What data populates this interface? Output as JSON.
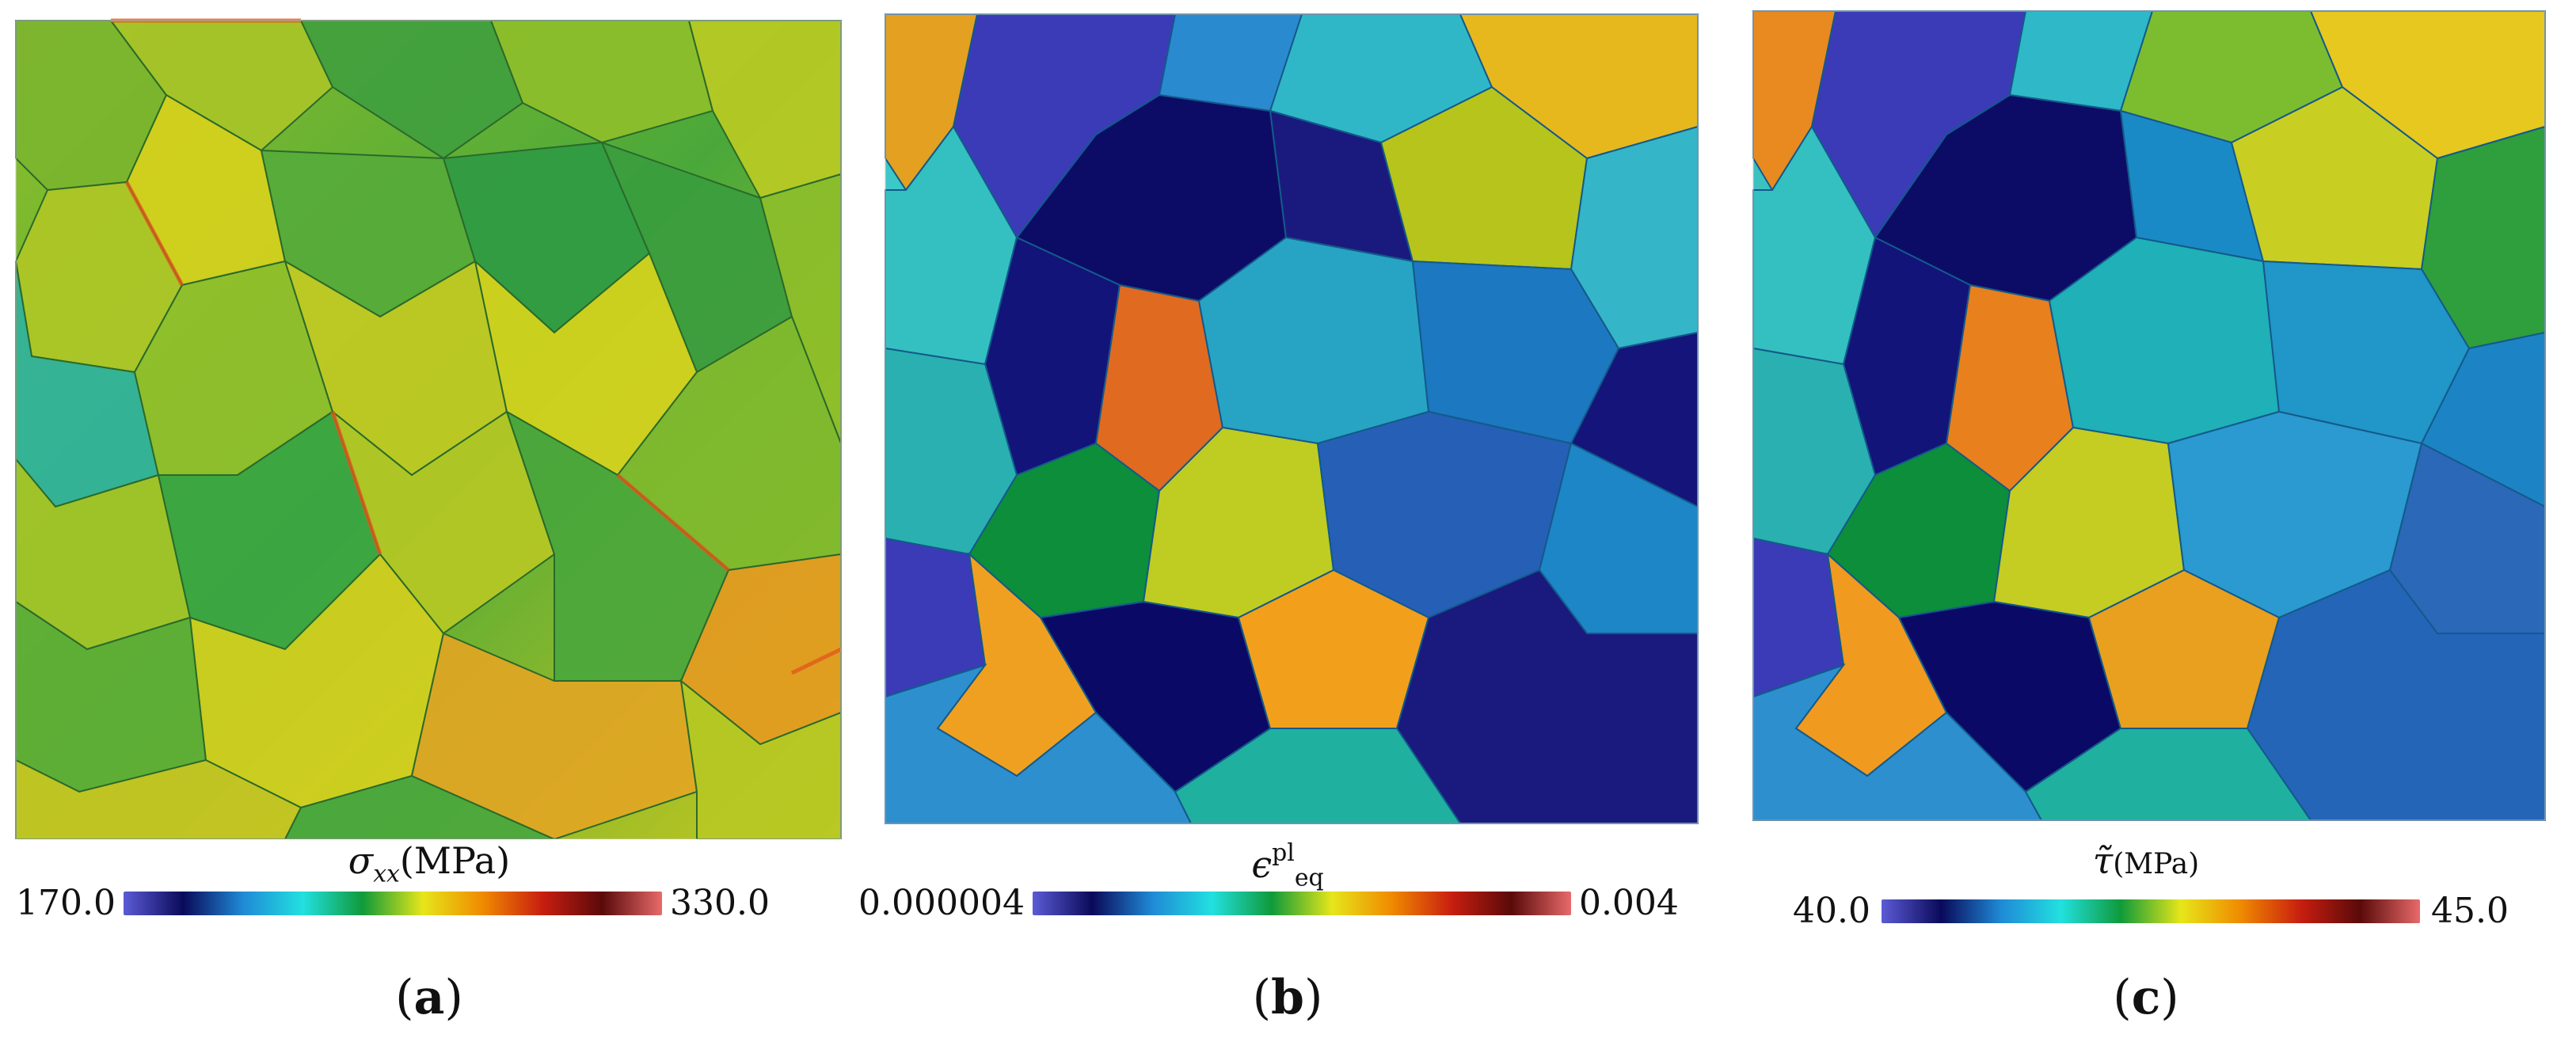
{
  "panels": [
    {
      "label": "a",
      "colorbar": {
        "title_symbol": "σ",
        "title_subscript": "xx",
        "title_unit": "(MPa)",
        "min": "170.0",
        "max": "330.0"
      }
    },
    {
      "label": "b",
      "colorbar": {
        "title_symbol": "ϵ",
        "title_superscript": "pl",
        "title_subscript": "eq",
        "min": "0.000004",
        "max": "0.004"
      }
    },
    {
      "label": "c",
      "colorbar": {
        "title_symbol": "τ̃",
        "title_unit": "(MPa)",
        "min": "40.0",
        "max": "45.0"
      }
    }
  ],
  "colormap": [
    "#5b5bd6",
    "#0a0a5a",
    "#1f8ad6",
    "#22e0e0",
    "#0f9a3a",
    "#e6e61a",
    "#f08a00",
    "#c81e10",
    "#5a0a0a",
    "#e86a6a"
  ]
}
